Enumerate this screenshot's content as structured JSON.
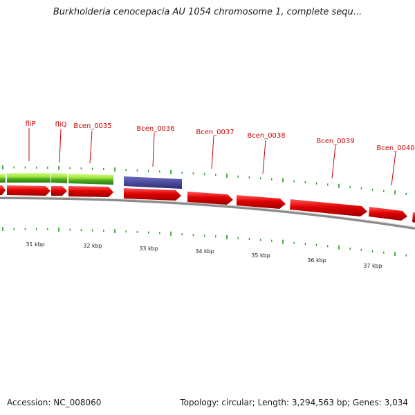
{
  "title": "Burkholderia cenocepacia AU 1054 chromosome 1, complete sequ...",
  "footer": {
    "accession": "Accession: NC_008060",
    "summary": "Topology: circular; Length: 3,294,563 bp; Genes: 3,034"
  },
  "colors": {
    "gene_red": "#e00000",
    "gene_blue": "#4b4a9c",
    "gene_green_light": "#9fe33a",
    "gene_green_dark": "#3a9a1a",
    "tick_green": "#1c9a1c",
    "label_red": "#cc0000",
    "backbone": "#8a8a8a"
  },
  "axis_labels": [
    "31 kbp",
    "32 kbp",
    "33 kbp",
    "34 kbp",
    "35 kbp",
    "36 kbp",
    "37 kbp"
  ],
  "gene_labels": [
    "fliP",
    "fliQ",
    "Bcen_0035",
    "Bcen_0036",
    "Bcen_0037",
    "Bcen_0038",
    "Bcen_0039",
    "Bcen_0040"
  ]
}
